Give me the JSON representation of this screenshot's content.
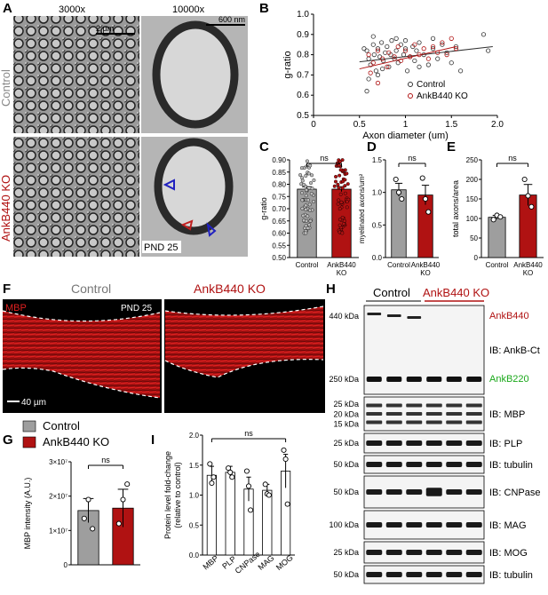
{
  "panels": {
    "A": {
      "letter": "A",
      "col1": "3000x",
      "col2": "10000x",
      "scale1": "2 µm",
      "scale2": "600 nm",
      "row1": "Control",
      "row2": "AnkB440 KO",
      "pnd": "PND 25"
    },
    "F": {
      "letter": "F",
      "mbp": "MBP",
      "control": "Control",
      "ko": "AnkB440 KO",
      "pnd": "PND 25",
      "scale": "40 µm"
    },
    "H": {
      "letter": "H",
      "control": "Control",
      "ko": "AnkB440 KO",
      "blots": [
        {
          "label": "IB: AnkB-Ct",
          "mw": [
            "440 kDa",
            "250 kDa"
          ],
          "bands": [
            "AnkB440",
            "AnkB220"
          ]
        },
        {
          "label": "IB: MBP",
          "mw": [
            "25 kDa",
            "20 kDa",
            "15 kDa"
          ]
        },
        {
          "label": "IB: PLP",
          "mw": [
            "25 kDa"
          ]
        },
        {
          "label": "IB: tubulin",
          "mw": [
            "50 kDa"
          ]
        },
        {
          "label": "IB: CNPase",
          "mw": [
            "50 kDa"
          ]
        },
        {
          "label": "IB: MAG",
          "mw": [
            "100 kDa"
          ]
        },
        {
          "label": "IB: MOG",
          "mw": [
            "25 kDa"
          ]
        },
        {
          "label": "IB: tubulin",
          "mw": [
            "50 kDa"
          ]
        }
      ]
    },
    "colors": {
      "control": "#9e9e9e",
      "ko": "#b01212",
      "ankb440": "#b01212",
      "ankb220": "#1aa81a"
    }
  },
  "chart_data": [
    {
      "panel": "B",
      "type": "scatter",
      "xlabel": "Axon diameter (um)",
      "ylabel": "g-ratio",
      "xlim": [
        0,
        2.0
      ],
      "ylim": [
        0.5,
        1.0
      ],
      "xticks": [
        "0",
        "0.5",
        "1",
        "1.5",
        "2.0"
      ],
      "yticks": [
        "0.5",
        "0.6",
        "0.7",
        "0.8",
        "0.9",
        "1.0"
      ],
      "legend": [
        "Control",
        "AnkB440 KO"
      ],
      "legend_position": "bottom-right",
      "series": [
        {
          "name": "Control",
          "trend": [
            [
              0.5,
              0.765
            ],
            [
              1.95,
              0.84
            ]
          ],
          "points": [
            [
              0.55,
              0.83
            ],
            [
              0.58,
              0.82
            ],
            [
              0.6,
              0.78
            ],
            [
              0.62,
              0.75
            ],
            [
              0.65,
              0.85
            ],
            [
              0.66,
              0.8
            ],
            [
              0.68,
              0.72
            ],
            [
              0.7,
              0.83
            ],
            [
              0.72,
              0.79
            ],
            [
              0.74,
              0.86
            ],
            [
              0.76,
              0.77
            ],
            [
              0.78,
              0.81
            ],
            [
              0.8,
              0.84
            ],
            [
              0.82,
              0.74
            ],
            [
              0.84,
              0.8
            ],
            [
              0.85,
              0.87
            ],
            [
              0.88,
              0.78
            ],
            [
              0.9,
              0.82
            ],
            [
              0.92,
              0.76
            ],
            [
              0.95,
              0.85
            ],
            [
              0.98,
              0.8
            ],
            [
              1.0,
              0.83
            ],
            [
              1.02,
              0.72
            ],
            [
              1.05,
              0.79
            ],
            [
              1.08,
              0.84
            ],
            [
              1.1,
              0.77
            ],
            [
              1.12,
              0.82
            ],
            [
              1.15,
              0.86
            ],
            [
              1.2,
              0.8
            ],
            [
              1.25,
              0.75
            ],
            [
              1.3,
              0.83
            ],
            [
              1.35,
              0.78
            ],
            [
              1.4,
              0.85
            ],
            [
              1.45,
              0.81
            ],
            [
              1.5,
              0.76
            ],
            [
              1.55,
              0.84
            ],
            [
              0.6,
              0.68
            ],
            [
              0.58,
              0.62
            ],
            [
              0.7,
              0.7
            ],
            [
              0.9,
              0.88
            ],
            [
              1.6,
              0.72
            ],
            [
              1.85,
              0.9
            ],
            [
              1.9,
              0.82
            ],
            [
              0.65,
              0.89
            ],
            [
              0.75,
              0.73
            ],
            [
              1.0,
              0.87
            ],
            [
              1.15,
              0.74
            ],
            [
              1.3,
              0.88
            ]
          ]
        },
        {
          "name": "AnkB440 KO",
          "trend": [
            [
              0.5,
              0.73
            ],
            [
              1.55,
              0.84
            ]
          ],
          "points": [
            [
              0.6,
              0.8
            ],
            [
              0.65,
              0.76
            ],
            [
              0.7,
              0.82
            ],
            [
              0.75,
              0.78
            ],
            [
              0.8,
              0.74
            ],
            [
              0.82,
              0.81
            ],
            [
              0.88,
              0.79
            ],
            [
              0.92,
              0.84
            ],
            [
              0.95,
              0.77
            ],
            [
              1.0,
              0.82
            ],
            [
              1.05,
              0.79
            ],
            [
              1.1,
              0.85
            ],
            [
              1.15,
              0.8
            ],
            [
              1.2,
              0.83
            ],
            [
              1.25,
              0.78
            ],
            [
              1.3,
              0.84
            ],
            [
              1.35,
              0.81
            ],
            [
              1.4,
              0.86
            ],
            [
              1.45,
              0.8
            ],
            [
              1.5,
              0.88
            ],
            [
              0.7,
              0.66
            ],
            [
              0.62,
              0.71
            ],
            [
              1.55,
              0.83
            ]
          ]
        }
      ]
    },
    {
      "panel": "C",
      "type": "bar",
      "categories": [
        "Control",
        "AnkB440\nKO"
      ],
      "values": [
        0.78,
        0.78
      ],
      "errors": [
        0.01,
        0.01
      ],
      "ylabel": "g-ratio",
      "ylim": [
        0.5,
        0.9
      ],
      "yticks": [
        "0.50",
        "0.55",
        "0.60",
        "0.65",
        "0.70",
        "0.75",
        "0.80",
        "0.85",
        "0.90"
      ],
      "sig": "ns"
    },
    {
      "panel": "D",
      "type": "bar",
      "categories": [
        "Control",
        "AnkB440\nKO"
      ],
      "values": [
        1.04,
        0.96
      ],
      "errors": [
        0.1,
        0.15
      ],
      "points": [
        [
          1.2,
          1.0,
          0.9
        ],
        [
          1.22,
          0.9,
          0.7
        ]
      ],
      "ylabel": "myelinated axons/um²",
      "ylim": [
        0,
        1.5
      ],
      "yticks": [
        "0.0",
        "0.5",
        "1.0",
        "1.5"
      ],
      "sig": "ns"
    },
    {
      "panel": "E",
      "type": "bar",
      "categories": [
        "Control",
        "AnkB440\nKO"
      ],
      "values": [
        103,
        160
      ],
      "errors": [
        5,
        27
      ],
      "points": [
        [
          97,
          108,
          104
        ],
        [
          200,
          158,
          130
        ]
      ],
      "ylabel": "total axons/area",
      "ylim": [
        0,
        250
      ],
      "yticks": [
        "0",
        "50",
        "100",
        "150",
        "200",
        "250"
      ],
      "sig": "ns"
    },
    {
      "panel": "G",
      "type": "bar",
      "categories": [
        "Control",
        "AnkB440 KO"
      ],
      "values": [
        15800000.0,
        16500000.0
      ],
      "errors": [
        3500000.0,
        5500000.0
      ],
      "points": [
        [
          13500000.0,
          19000000.0,
          10500000.0
        ],
        [
          12000000.0,
          19000000.0,
          23500000.0
        ]
      ],
      "ylabel": "MBP intensity (A.U.)",
      "ylim": [
        0,
        30000000.0
      ],
      "yticks": [
        "0",
        "1×10⁷",
        "2×10⁷",
        "3×10⁷"
      ],
      "legend": [
        "Control",
        "AnkB440 KO"
      ],
      "sig": "ns"
    },
    {
      "panel": "I",
      "type": "bar",
      "categories": [
        "MBP",
        "PLP",
        "CNPase",
        "MAG",
        "MOG"
      ],
      "values": [
        1.33,
        1.38,
        1.1,
        1.08,
        1.4
      ],
      "errors": [
        0.15,
        0.1,
        0.2,
        0.1,
        0.28
      ],
      "points": [
        [
          1.52,
          1.2,
          1.3
        ],
        [
          1.45,
          1.38,
          1.3
        ],
        [
          1.4,
          1.15,
          0.75
        ],
        [
          1.18,
          1.02,
          1.0
        ],
        [
          1.75,
          1.6,
          0.85
        ]
      ],
      "ylabel": "Protein level fold-change\n(relative to control)",
      "ylim": [
        0,
        2.0
      ],
      "yticks": [
        "0.0",
        "0.5",
        "1.0",
        "1.5",
        "2.0"
      ],
      "sig": "ns"
    }
  ]
}
